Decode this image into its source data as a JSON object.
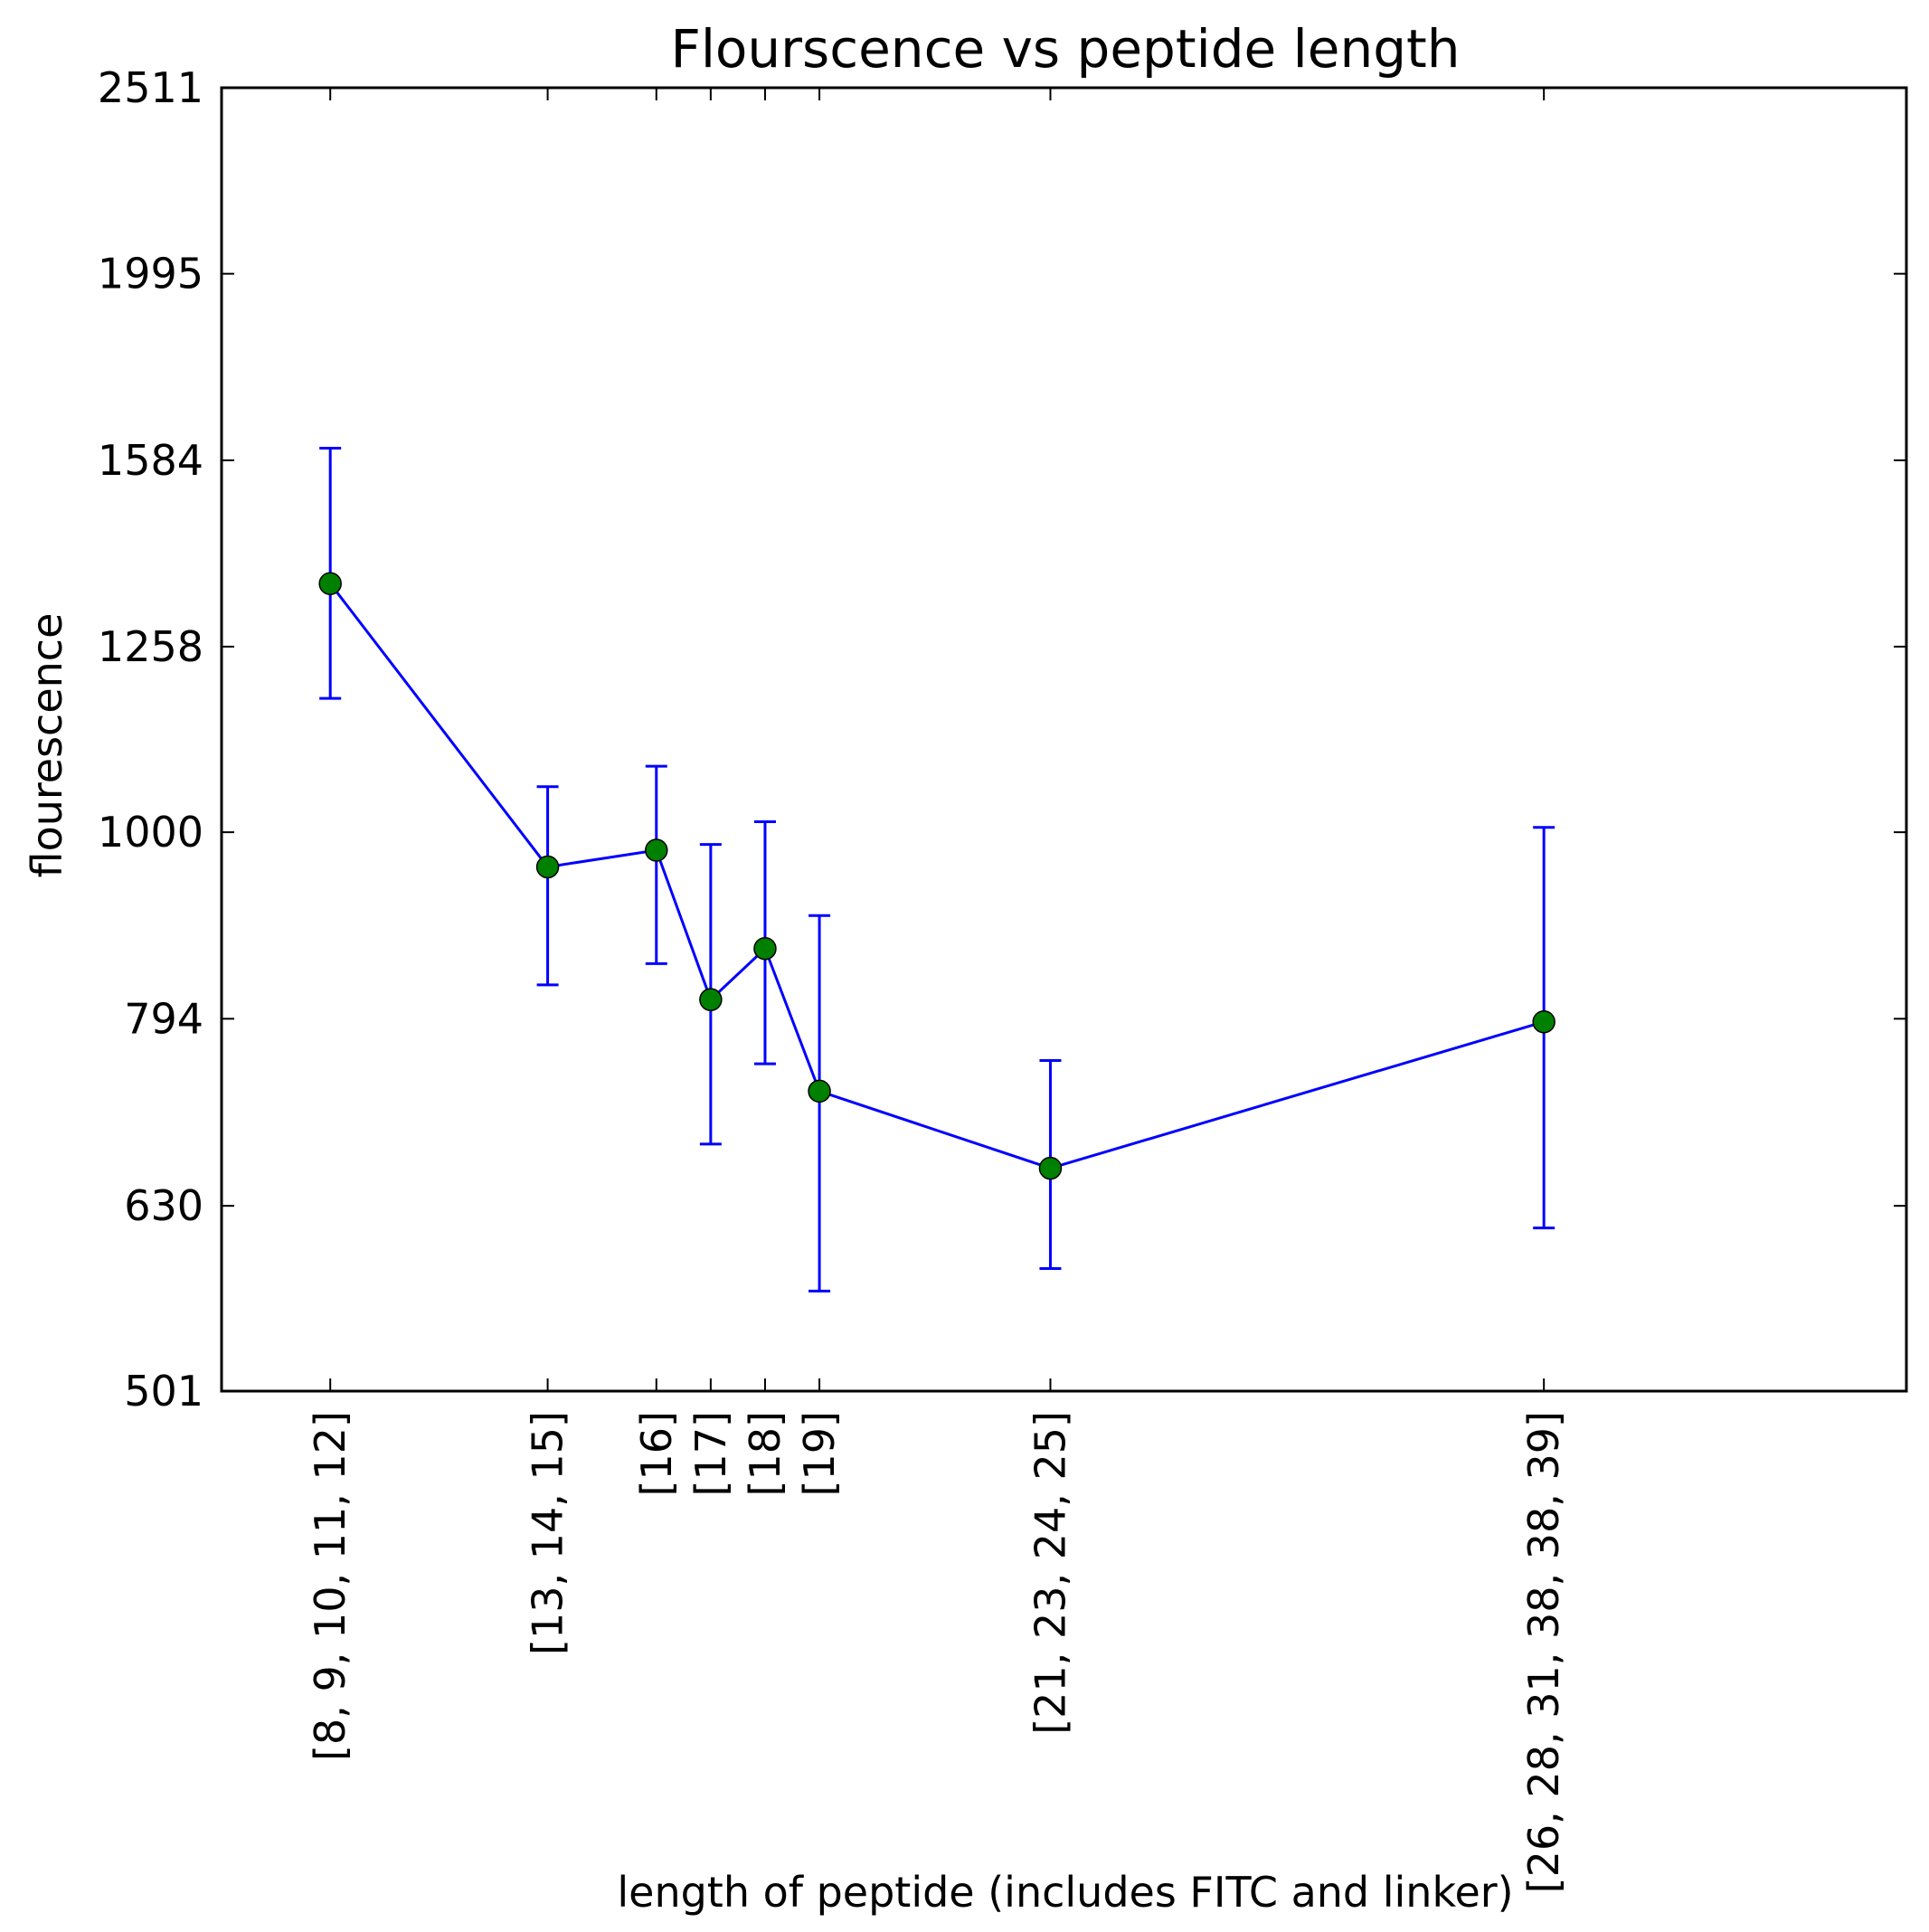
{
  "chart_data": {
    "type": "line",
    "title": "Flourscence vs peptide length",
    "xlabel": "length of peptide (includes FITC and linker)",
    "ylabel": "flourescence",
    "y_scale": "log",
    "ylim": [
      501,
      2511
    ],
    "xlim": [
      6,
      37
    ],
    "yticks": [
      501,
      630,
      794,
      1000,
      1258,
      1584,
      1995,
      2511
    ],
    "grid": false,
    "legend": "none",
    "series": [
      {
        "x": [
          8,
          12,
          14,
          15,
          16,
          17,
          21.25,
          30.33
        ],
        "categories": [
          "[8, 9, 10, 11, 12]",
          "[13, 14, 15]",
          "[16]",
          "[17]",
          "[18]",
          "[19]",
          "[21, 23, 24, 25]",
          "[26, 28, 31, 38, 38, 39]"
        ],
        "values": [
          1360,
          958,
          978,
          813,
          866,
          726,
          660,
          791
        ],
        "err_low": [
          1180,
          828,
          850,
          680,
          751,
          567,
          583,
          613
        ],
        "err_high": [
          1608,
          1058,
          1085,
          985,
          1013,
          902,
          754,
          1006
        ],
        "line_color": "#0000ff",
        "marker_color": "#008000"
      }
    ]
  }
}
